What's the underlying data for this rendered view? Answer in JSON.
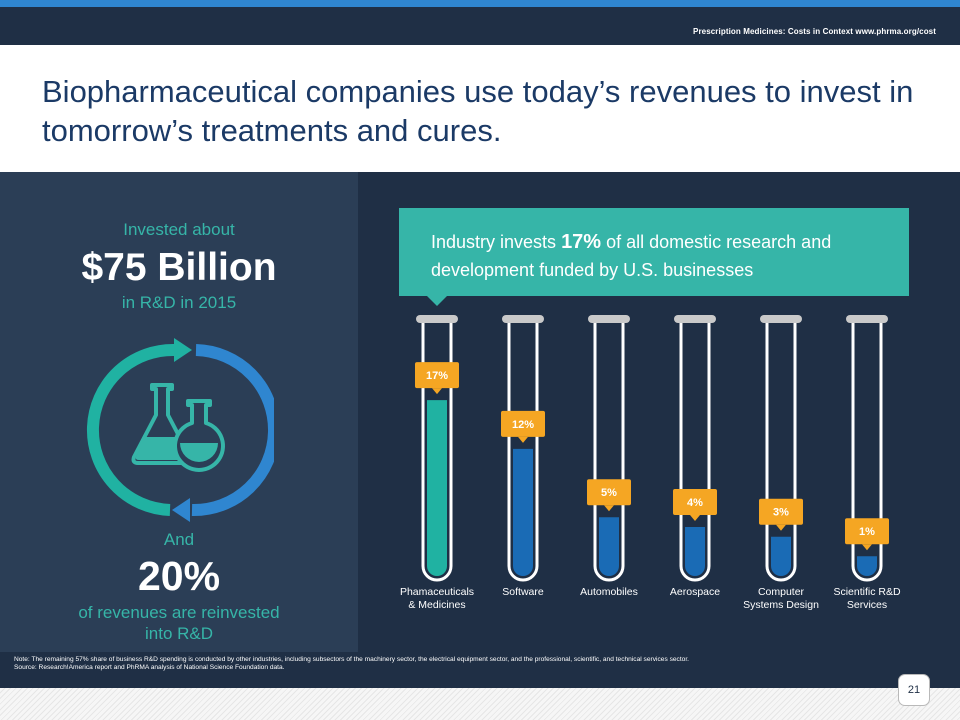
{
  "header": {
    "reference": "Prescription Medicines: Costs in Context www.phrma.org/cost"
  },
  "title": "Biopharmaceutical companies use today’s revenues to invest in tomorrow’s treatments and cures.",
  "left_panel": {
    "invested_about": "Invested about",
    "amount": "$75 Billion",
    "rd_year": "in R&D in 2015",
    "and": "And",
    "percent": "20%",
    "reinvest_line1": "of revenues are reinvested",
    "reinvest_line2": "into R&D",
    "icon": "flask-cycle-icon"
  },
  "callout": {
    "prefix": "Industry invests ",
    "highlight": "17%",
    "suffix": " of all domestic research and development funded by U.S. businesses"
  },
  "chart_data": {
    "type": "bar",
    "title": "",
    "xlabel": "",
    "ylabel": "",
    "categories": [
      "Phamaceuticals\n& Medicines",
      "Software",
      "Automobiles",
      "Aerospace",
      "Computer\nSystems Design",
      "Scientific R&D\nServices"
    ],
    "values": [
      17,
      12,
      5,
      4,
      3,
      1
    ],
    "value_labels": [
      "17%",
      "12%",
      "5%",
      "4%",
      "3%",
      "1%"
    ],
    "unit": "%",
    "ylim": [
      0,
      25
    ],
    "grid": false,
    "legend": "none",
    "colors": {
      "highlight": "#20b2a2",
      "bar": "#1a6bb5",
      "label_box": "#f5a623",
      "tube": "#ffffff",
      "cap": "#c9c9c9"
    }
  },
  "footer": {
    "note": "Note: The remaining 57% share of business R&D spending is conducted by other industries, including subsectors of the machinery sector, the electrical equipment sector, and the professional, scientific, and technical services sector.",
    "source": "Source: Research!America report and PhRMA analysis of National Science Foundation data.",
    "page_number": "21"
  },
  "colors": {
    "navy": "#1f2f45",
    "teal": "#36b5a8",
    "blue_accent": "#2f86d0",
    "title_text": "#1b3a66"
  }
}
